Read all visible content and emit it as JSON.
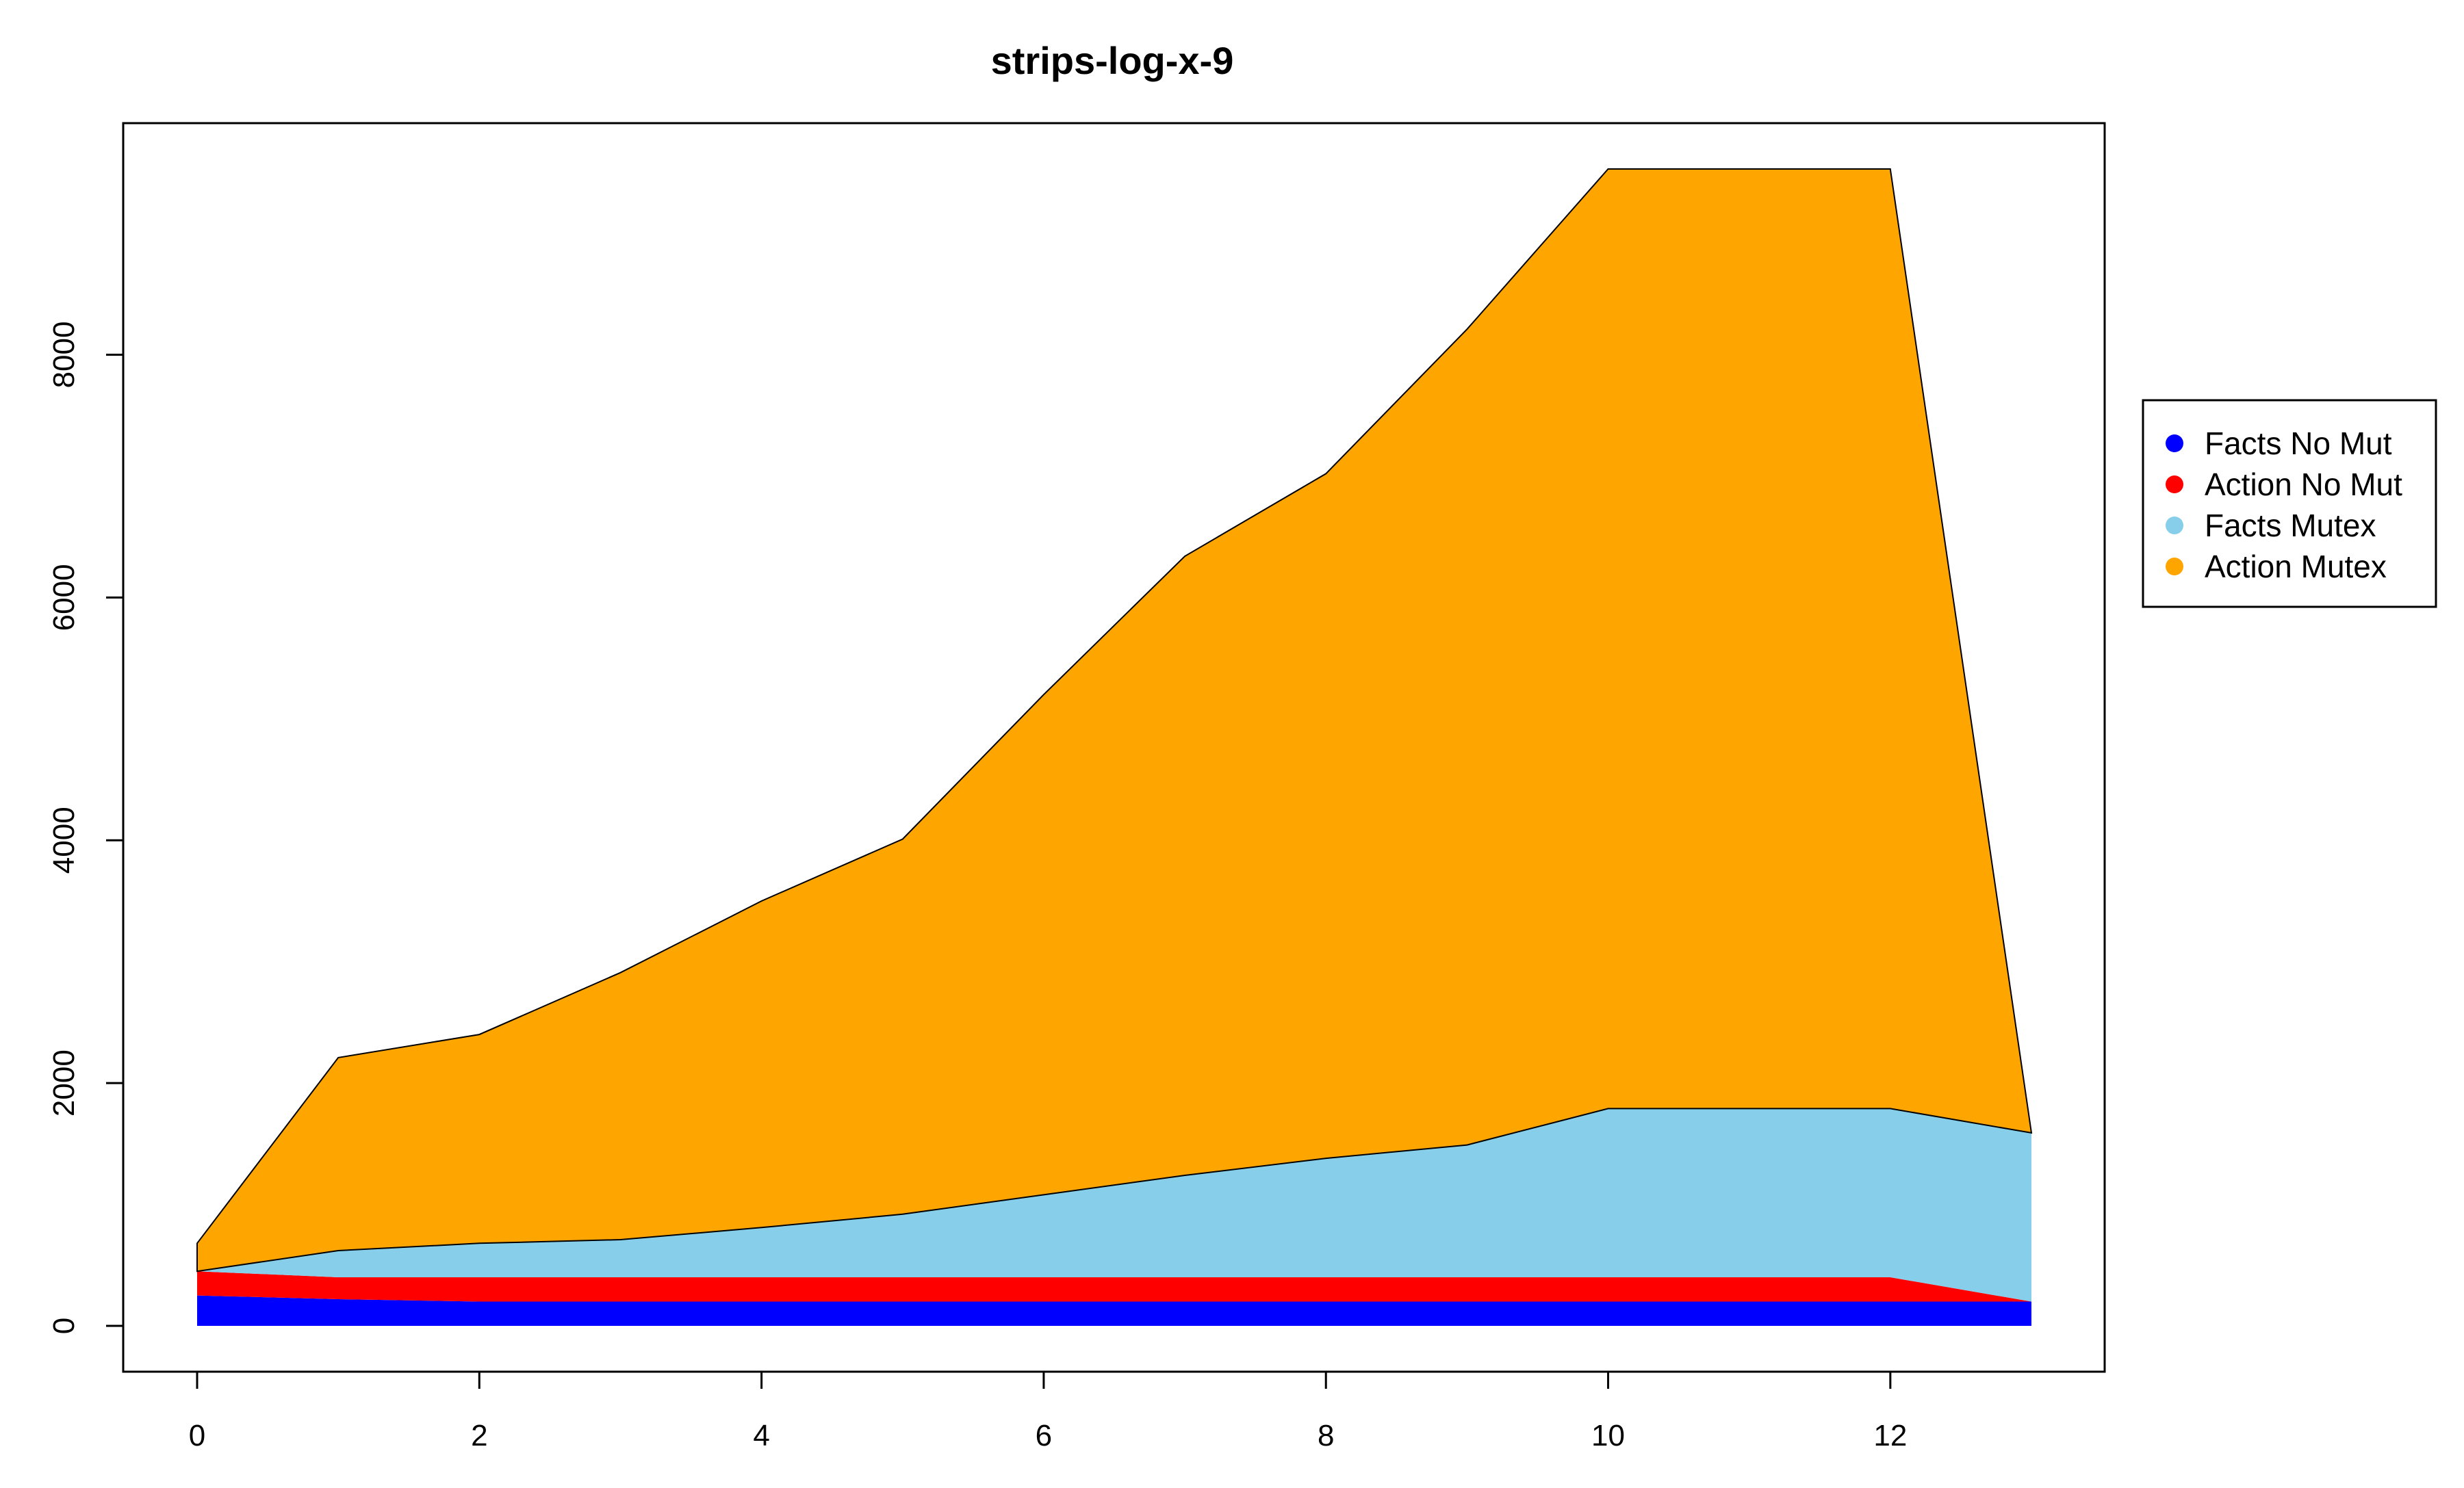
{
  "chart_data": {
    "type": "area",
    "stacked": true,
    "title": "strips-log-x-9",
    "xlabel": "",
    "ylabel": "",
    "x": [
      0,
      1,
      2,
      3,
      4,
      5,
      6,
      7,
      8,
      9,
      10,
      11,
      12,
      13
    ],
    "xlim": [
      0,
      13
    ],
    "ylim": [
      0,
      9530
    ],
    "xticks": [
      "0",
      "2",
      "4",
      "6",
      "8",
      "10",
      "12"
    ],
    "yticks": [
      "0",
      "2000",
      "4000",
      "6000",
      "8000"
    ],
    "grid": false,
    "legend_position": "right",
    "series": [
      {
        "name": "Facts No Mut",
        "color": "#0000FF",
        "values": [
          250,
          220,
          200,
          200,
          200,
          200,
          200,
          200,
          200,
          200,
          200,
          200,
          200,
          200
        ]
      },
      {
        "name": "Action No Mut",
        "color": "#FF0000",
        "values": [
          200,
          180,
          200,
          200,
          200,
          200,
          200,
          200,
          200,
          200,
          200,
          200,
          200,
          0
        ]
      },
      {
        "name": "Facts Mutex",
        "color": "#87CEEB",
        "values": [
          0,
          220,
          280,
          310,
          410,
          520,
          680,
          840,
          980,
          1090,
          1390,
          1390,
          1390,
          1390
        ]
      },
      {
        "name": "Action Mutex",
        "color": "#FFA500",
        "values": [
          230,
          1590,
          1720,
          2200,
          2690,
          3090,
          4120,
          5100,
          5640,
          6720,
          7740,
          7740,
          7740,
          0
        ]
      }
    ]
  }
}
